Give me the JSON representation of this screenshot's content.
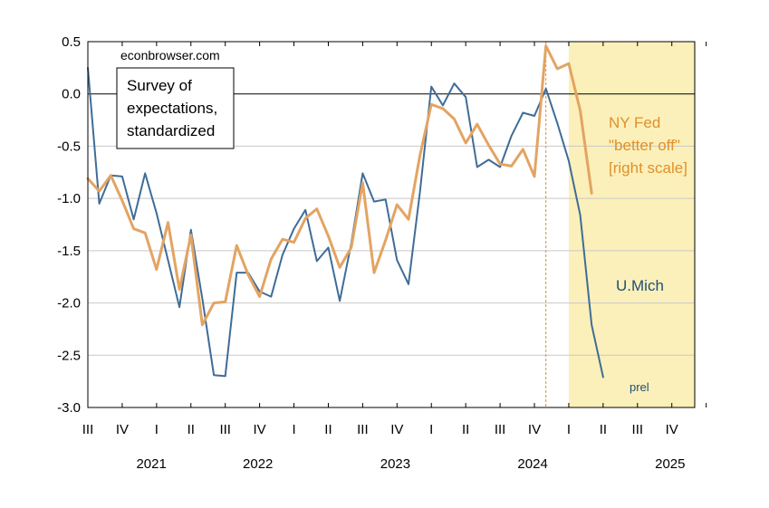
{
  "chart_data": {
    "type": "line",
    "title": "",
    "xlabel": "",
    "ylabel": "",
    "ylim": [
      -3.0,
      0.5
    ],
    "y_ticks": [
      "0.5",
      "0.0",
      "-0.5",
      "-1.0",
      "-1.5",
      "-2.0",
      "-2.5",
      "-3.0"
    ],
    "y_tick_values": [
      0.5,
      0.0,
      -0.5,
      -1.0,
      -1.5,
      -2.0,
      -2.5,
      -3.0
    ],
    "grid": true,
    "x_quarter_ticks": [
      "III",
      "IV",
      "I",
      "II",
      "III",
      "IV",
      "I",
      "II",
      "III",
      "IV",
      "I",
      "II",
      "III",
      "IV",
      "I",
      "II",
      "III",
      "IV"
    ],
    "x_year_labels": [
      {
        "label": "2021",
        "quarter_index": 0.9
      },
      {
        "label": "2022",
        "quarter_index": 4.0
      },
      {
        "label": "2023",
        "quarter_index": 8.0
      },
      {
        "label": "2024",
        "quarter_index": 12.0
      },
      {
        "label": "2025",
        "quarter_index": 16.0
      }
    ],
    "x_start": "2021-07",
    "x_end": "2025-12",
    "shaded_region": {
      "from": "2025-01",
      "to": "2025-12",
      "color": "#fbf0b9"
    },
    "vertical_line": {
      "at": "2024-11",
      "color": "#e0902c"
    },
    "series": [
      {
        "name": "U.Mich",
        "color": "#3f6c98",
        "x": [
          "2021-07",
          "2021-08",
          "2021-09",
          "2021-10",
          "2021-11",
          "2021-12",
          "2022-01",
          "2022-02",
          "2022-03",
          "2022-04",
          "2022-05",
          "2022-06",
          "2022-07",
          "2022-08",
          "2022-09",
          "2022-10",
          "2022-11",
          "2022-12",
          "2023-01",
          "2023-02",
          "2023-03",
          "2023-04",
          "2023-05",
          "2023-06",
          "2023-07",
          "2023-08",
          "2023-09",
          "2023-10",
          "2023-11",
          "2023-12",
          "2024-01",
          "2024-02",
          "2024-03",
          "2024-04",
          "2024-05",
          "2024-06",
          "2024-07",
          "2024-08",
          "2024-09",
          "2024-10",
          "2024-11",
          "2024-12",
          "2025-01",
          "2025-02",
          "2025-03",
          "2025-04"
        ],
        "values": [
          0.25,
          -1.05,
          -0.78,
          -0.79,
          -1.2,
          -0.76,
          -1.14,
          -1.59,
          -2.04,
          -1.3,
          -1.96,
          -2.69,
          -2.7,
          -1.71,
          -1.71,
          -1.89,
          -1.94,
          -1.54,
          -1.29,
          -1.11,
          -1.6,
          -1.47,
          -1.98,
          -1.43,
          -0.76,
          -1.03,
          -1.01,
          -1.59,
          -1.82,
          -0.94,
          0.07,
          -0.11,
          0.1,
          -0.03,
          -0.7,
          -0.63,
          -0.7,
          -0.4,
          -0.18,
          -0.21,
          0.05,
          -0.28,
          -0.64,
          -1.16,
          -2.21,
          -2.71
        ]
      },
      {
        "name": "NY Fed \"better off\" [right scale]",
        "color": "#e3a462",
        "x": [
          "2021-07",
          "2021-08",
          "2021-09",
          "2021-10",
          "2021-11",
          "2021-12",
          "2022-01",
          "2022-02",
          "2022-03",
          "2022-04",
          "2022-05",
          "2022-06",
          "2022-07",
          "2022-08",
          "2022-09",
          "2022-10",
          "2022-11",
          "2022-12",
          "2023-01",
          "2023-02",
          "2023-03",
          "2023-04",
          "2023-05",
          "2023-06",
          "2023-07",
          "2023-08",
          "2023-09",
          "2023-10",
          "2023-11",
          "2023-12",
          "2024-01",
          "2024-02",
          "2024-03",
          "2024-04",
          "2024-05",
          "2024-06",
          "2024-07",
          "2024-08",
          "2024-09",
          "2024-10",
          "2024-11",
          "2024-12",
          "2025-01",
          "2025-02",
          "2025-03"
        ],
        "values": [
          -0.81,
          -0.93,
          -0.78,
          -1.02,
          -1.29,
          -1.33,
          -1.68,
          -1.23,
          -1.87,
          -1.35,
          -2.21,
          -2.0,
          -1.99,
          -1.45,
          -1.73,
          -1.94,
          -1.58,
          -1.39,
          -1.42,
          -1.19,
          -1.1,
          -1.36,
          -1.66,
          -1.47,
          -0.85,
          -1.71,
          -1.4,
          -1.06,
          -1.2,
          -0.59,
          -0.1,
          -0.14,
          -0.24,
          -0.47,
          -0.29,
          -0.49,
          -0.67,
          -0.69,
          -0.53,
          -0.79,
          0.46,
          0.24,
          0.29,
          -0.16,
          -0.95
        ]
      }
    ],
    "annotations": {
      "site": "econbrowser.com",
      "title_box": [
        "Survey of",
        "expectations,",
        "standardized"
      ],
      "nyfed_label": [
        "NY Fed",
        "\"better off\"",
        "[right scale]"
      ],
      "umich_label": "U.Mich",
      "prel_label": "prel"
    }
  }
}
